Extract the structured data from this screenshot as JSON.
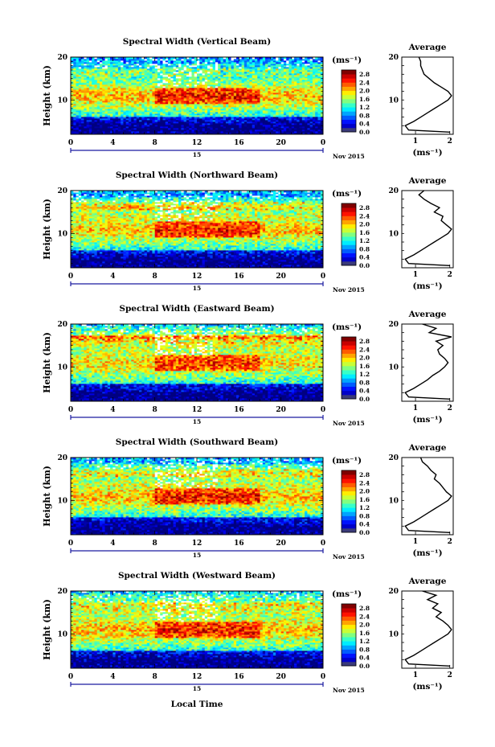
{
  "xlabel": "Local Time",
  "date_label": "Nov 2015",
  "day_label": "15",
  "colorbar": {
    "unit": "(ms⁻¹)",
    "ticks": [
      "2.8",
      "2.4",
      "2.0",
      "1.6",
      "1.2",
      "0.8",
      "0.4",
      "0.0"
    ]
  },
  "avg_title": "Average",
  "avg_xlabel": "(ms⁻¹)",
  "colors": {
    "nodata": "#ffffff",
    "low": "#1f2fd6",
    "high": "#e00000"
  },
  "chart_data": [
    {
      "type": "heatmap",
      "title": "Spectral Width (Vertical Beam)",
      "ylabel": "Height (km)",
      "x_ticks": [
        "0",
        "4",
        "8",
        "12",
        "16",
        "20",
        "0"
      ],
      "y_ticks": [
        "10",
        "20"
      ],
      "xlim": [
        0,
        24
      ],
      "ylim": [
        2,
        20
      ],
      "clim": [
        0.0,
        3.0
      ],
      "avg": {
        "xlim": [
          0.6,
          2.1
        ],
        "x_ticks": [
          "1",
          "2"
        ],
        "heights": [
          2.5,
          3,
          4,
          5,
          6,
          7,
          8,
          9,
          10,
          11,
          12,
          13,
          14,
          15,
          16,
          17,
          18,
          19,
          20
        ],
        "values": [
          2.0,
          0.8,
          0.7,
          0.95,
          1.15,
          1.35,
          1.55,
          1.75,
          1.95,
          2.05,
          1.95,
          1.75,
          1.55,
          1.4,
          1.25,
          1.2,
          1.15,
          1.15,
          1.1
        ]
      }
    },
    {
      "type": "heatmap",
      "title": "Spectral Width (Northward Beam)",
      "ylabel": "Height (km)",
      "x_ticks": [
        "0",
        "4",
        "8",
        "12",
        "16",
        "20",
        "0"
      ],
      "y_ticks": [
        "10",
        "20"
      ],
      "xlim": [
        0,
        24
      ],
      "ylim": [
        2,
        20
      ],
      "clim": [
        0.0,
        3.0
      ],
      "avg": {
        "xlim": [
          0.6,
          2.1
        ],
        "x_ticks": [
          "1",
          "2"
        ],
        "heights": [
          2.5,
          3,
          4,
          5,
          6,
          7,
          8,
          9,
          10,
          11,
          12,
          13,
          14,
          15,
          16,
          17,
          18,
          19,
          20
        ],
        "values": [
          2.0,
          0.8,
          0.7,
          0.95,
          1.15,
          1.35,
          1.55,
          1.75,
          1.95,
          2.05,
          1.9,
          1.75,
          1.8,
          1.55,
          1.7,
          1.45,
          1.25,
          1.1,
          1.25
        ]
      }
    },
    {
      "type": "heatmap",
      "title": "Spectral Width (Eastward Beam)",
      "ylabel": "Height (km)",
      "x_ticks": [
        "0",
        "4",
        "8",
        "12",
        "16",
        "20",
        "0"
      ],
      "y_ticks": [
        "10",
        "20"
      ],
      "xlim": [
        0,
        24
      ],
      "ylim": [
        2,
        20
      ],
      "clim": [
        0.0,
        3.0
      ],
      "avg": {
        "xlim": [
          0.6,
          2.1
        ],
        "x_ticks": [
          "1",
          "2"
        ],
        "heights": [
          2.5,
          3,
          4,
          5,
          6,
          7,
          8,
          9,
          10,
          11,
          12,
          13,
          14,
          15,
          16,
          17,
          18,
          19,
          20
        ],
        "values": [
          2.0,
          0.8,
          0.7,
          0.95,
          1.15,
          1.35,
          1.5,
          1.7,
          1.85,
          1.95,
          1.85,
          1.7,
          1.65,
          1.8,
          1.6,
          2.05,
          1.4,
          1.6,
          1.2
        ]
      }
    },
    {
      "type": "heatmap",
      "title": "Spectral Width (Southward Beam)",
      "ylabel": "Height (km)",
      "x_ticks": [
        "0",
        "4",
        "8",
        "12",
        "16",
        "20",
        "0"
      ],
      "y_ticks": [
        "10",
        "20"
      ],
      "xlim": [
        0,
        24
      ],
      "ylim": [
        2,
        20
      ],
      "clim": [
        0.0,
        3.0
      ],
      "avg": {
        "xlim": [
          0.6,
          2.1
        ],
        "x_ticks": [
          "1",
          "2"
        ],
        "heights": [
          2.5,
          3,
          4,
          5,
          6,
          7,
          8,
          9,
          10,
          11,
          12,
          13,
          14,
          15,
          16,
          17,
          18,
          19,
          20
        ],
        "values": [
          2.0,
          0.8,
          0.7,
          0.95,
          1.15,
          1.35,
          1.55,
          1.75,
          1.95,
          2.05,
          1.9,
          1.8,
          1.7,
          1.55,
          1.6,
          1.45,
          1.35,
          1.2,
          1.15
        ]
      }
    },
    {
      "type": "heatmap",
      "title": "Spectral Width (Westward Beam)",
      "ylabel": "Height (km)",
      "x_ticks": [
        "0",
        "4",
        "8",
        "12",
        "16",
        "20",
        "0"
      ],
      "y_ticks": [
        "10",
        "20"
      ],
      "xlim": [
        0,
        24
      ],
      "ylim": [
        2,
        20
      ],
      "clim": [
        0.0,
        3.0
      ],
      "avg": {
        "xlim": [
          0.6,
          2.1
        ],
        "x_ticks": [
          "1",
          "2"
        ],
        "heights": [
          2.5,
          3,
          4,
          5,
          6,
          7,
          8,
          9,
          10,
          11,
          12,
          13,
          14,
          15,
          16,
          17,
          18,
          19,
          20
        ],
        "values": [
          2.0,
          0.8,
          0.7,
          0.95,
          1.15,
          1.35,
          1.55,
          1.75,
          1.95,
          2.05,
          1.95,
          1.8,
          1.6,
          1.75,
          1.5,
          1.65,
          1.35,
          1.6,
          1.2
        ]
      }
    }
  ]
}
